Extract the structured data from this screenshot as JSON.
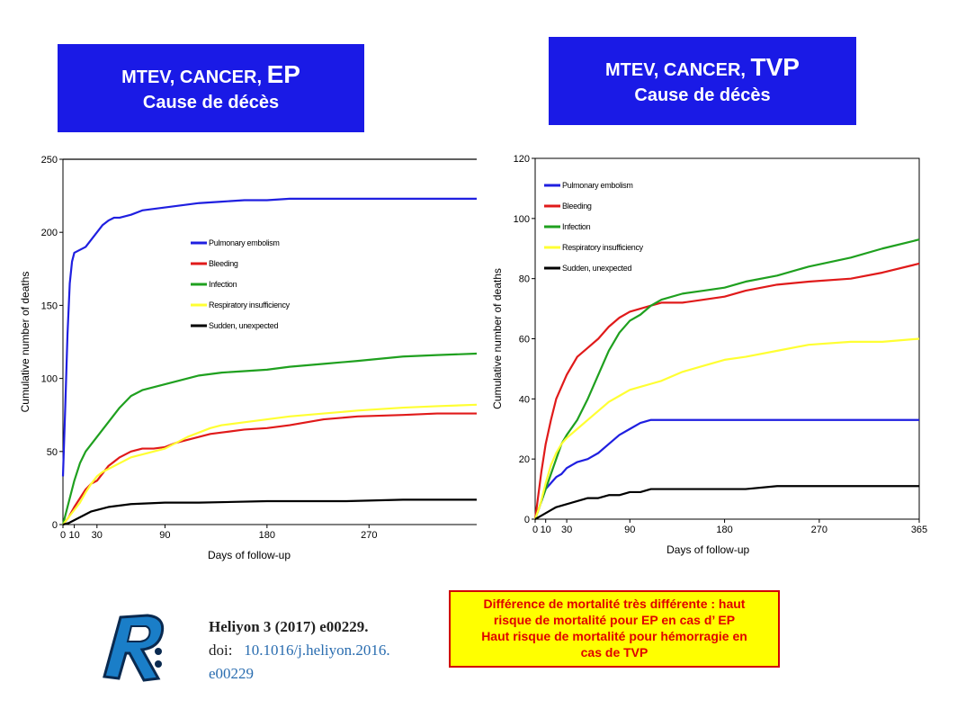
{
  "left_title": {
    "line1_prefix": "MTEV, CANCER,",
    "line1_emph": "EP",
    "line2": "Cause de décès"
  },
  "right_title": {
    "line1_prefix": "MTEV, CANCER,",
    "line1_emph": "TVP",
    "line2": "Cause de décès"
  },
  "colors": {
    "title_bg": "#1a1ae6",
    "pe": "#1f1fe0",
    "bleeding": "#e01a1a",
    "infection": "#1fa01f",
    "respiratory": "#ffff33",
    "sudden": "#000000",
    "note_bg": "#ffff00",
    "note_text": "#e00000"
  },
  "chart_data": [
    {
      "type": "line",
      "title": "MTEV, CANCER, EP — Cause de décès",
      "xlabel": "Days of follow-up",
      "ylabel": "Cumulative number of deaths",
      "xlim": [
        0,
        365
      ],
      "ylim": [
        0,
        250
      ],
      "xticks": [
        0,
        10,
        30,
        90,
        180,
        270
      ],
      "yticks": [
        0,
        50,
        100,
        150,
        200,
        250
      ],
      "series": [
        {
          "name": "Pulmonary embolism",
          "color": "#1f1fe0",
          "x": [
            0,
            2,
            4,
            6,
            8,
            10,
            15,
            20,
            25,
            30,
            35,
            40,
            45,
            50,
            60,
            70,
            80,
            90,
            100,
            110,
            120,
            140,
            160,
            180,
            200,
            230,
            260,
            300,
            330,
            365
          ],
          "y": [
            33,
            80,
            130,
            165,
            180,
            186,
            188,
            190,
            195,
            200,
            205,
            208,
            210,
            210,
            212,
            215,
            216,
            217,
            218,
            219,
            220,
            221,
            222,
            222,
            223,
            223,
            223,
            223,
            223,
            223
          ]
        },
        {
          "name": "Bleeding",
          "color": "#e01a1a",
          "x": [
            0,
            5,
            10,
            15,
            20,
            25,
            30,
            35,
            40,
            50,
            60,
            70,
            80,
            90,
            100,
            110,
            120,
            130,
            140,
            160,
            180,
            200,
            230,
            260,
            300,
            330,
            365
          ],
          "y": [
            0,
            5,
            12,
            18,
            24,
            28,
            30,
            35,
            40,
            46,
            50,
            52,
            52,
            53,
            56,
            58,
            60,
            62,
            63,
            65,
            66,
            68,
            72,
            74,
            75,
            76,
            76
          ]
        },
        {
          "name": "Infection",
          "color": "#1fa01f",
          "x": [
            0,
            5,
            10,
            15,
            20,
            25,
            30,
            35,
            40,
            45,
            50,
            60,
            70,
            80,
            90,
            100,
            110,
            120,
            130,
            140,
            160,
            180,
            200,
            230,
            260,
            300,
            330,
            365
          ],
          "y": [
            0,
            15,
            30,
            42,
            50,
            55,
            60,
            65,
            70,
            75,
            80,
            88,
            92,
            94,
            96,
            98,
            100,
            102,
            103,
            104,
            105,
            106,
            108,
            110,
            112,
            115,
            116,
            117
          ]
        },
        {
          "name": "Respiratory insufficiency",
          "color": "#ffff33",
          "x": [
            0,
            5,
            10,
            15,
            20,
            25,
            30,
            35,
            40,
            50,
            60,
            70,
            80,
            90,
            100,
            110,
            120,
            130,
            140,
            160,
            180,
            200,
            230,
            260,
            300,
            330,
            365
          ],
          "y": [
            0,
            5,
            10,
            15,
            22,
            28,
            33,
            36,
            38,
            42,
            46,
            48,
            50,
            52,
            56,
            60,
            63,
            66,
            68,
            70,
            72,
            74,
            76,
            78,
            80,
            81,
            82
          ]
        },
        {
          "name": "Sudden, unexpected",
          "color": "#000000",
          "x": [
            0,
            5,
            10,
            15,
            20,
            25,
            30,
            40,
            50,
            60,
            90,
            120,
            180,
            200,
            250,
            300,
            365
          ],
          "y": [
            0,
            1,
            3,
            5,
            7,
            9,
            10,
            12,
            13,
            14,
            15,
            15,
            16,
            16,
            16,
            17,
            17
          ]
        }
      ]
    },
    {
      "type": "line",
      "title": "MTEV, CANCER, TVP — Cause de décès",
      "xlabel": "Days of follow-up",
      "ylabel": "Cumulative number of deaths",
      "xlim": [
        0,
        365
      ],
      "ylim": [
        0,
        120
      ],
      "xticks": [
        0,
        10,
        30,
        90,
        180,
        270,
        365
      ],
      "yticks": [
        0,
        20,
        40,
        60,
        80,
        100,
        120
      ],
      "series": [
        {
          "name": "Pulmonary embolism",
          "color": "#1f1fe0",
          "x": [
            0,
            5,
            10,
            15,
            20,
            25,
            30,
            40,
            50,
            60,
            70,
            80,
            90,
            100,
            110,
            120,
            180,
            270,
            365
          ],
          "y": [
            0,
            5,
            10,
            12,
            14,
            15,
            17,
            19,
            20,
            22,
            25,
            28,
            30,
            32,
            33,
            33,
            33,
            33,
            33
          ]
        },
        {
          "name": "Bleeding",
          "color": "#e01a1a",
          "x": [
            0,
            3,
            6,
            10,
            15,
            20,
            25,
            30,
            40,
            50,
            60,
            70,
            80,
            90,
            100,
            110,
            120,
            140,
            160,
            180,
            200,
            230,
            260,
            300,
            330,
            365
          ],
          "y": [
            0,
            8,
            16,
            25,
            33,
            40,
            44,
            48,
            54,
            57,
            60,
            64,
            67,
            69,
            70,
            71,
            72,
            72,
            73,
            74,
            76,
            78,
            79,
            80,
            82,
            85
          ]
        },
        {
          "name": "Infection",
          "color": "#1fa01f",
          "x": [
            0,
            5,
            10,
            15,
            20,
            25,
            30,
            40,
            50,
            60,
            70,
            80,
            90,
            100,
            110,
            120,
            140,
            160,
            180,
            200,
            230,
            260,
            300,
            330,
            365
          ],
          "y": [
            0,
            5,
            10,
            15,
            20,
            25,
            28,
            33,
            40,
            48,
            56,
            62,
            66,
            68,
            71,
            73,
            75,
            76,
            77,
            79,
            81,
            84,
            87,
            90,
            93
          ]
        },
        {
          "name": "Respiratory insufficiency",
          "color": "#ffff33",
          "x": [
            0,
            5,
            10,
            15,
            20,
            25,
            30,
            40,
            50,
            60,
            70,
            80,
            90,
            100,
            110,
            120,
            140,
            160,
            180,
            200,
            230,
            260,
            300,
            330,
            365
          ],
          "y": [
            0,
            5,
            12,
            18,
            22,
            25,
            27,
            30,
            33,
            36,
            39,
            41,
            43,
            44,
            45,
            46,
            49,
            51,
            53,
            54,
            56,
            58,
            59,
            59,
            60
          ]
        },
        {
          "name": "Sudden, unexpected",
          "color": "#000000",
          "x": [
            0,
            5,
            10,
            15,
            20,
            30,
            40,
            50,
            60,
            70,
            80,
            90,
            100,
            110,
            180,
            200,
            230,
            270,
            365
          ],
          "y": [
            0,
            1,
            2,
            3,
            4,
            5,
            6,
            7,
            7,
            8,
            8,
            9,
            9,
            10,
            10,
            10,
            11,
            11,
            11
          ]
        }
      ]
    }
  ],
  "citation": {
    "journal": "Heliyon 3 (2017) e00229.",
    "doi_label": "doi:",
    "doi_part1": "10.1016/j.heliyon.2016.",
    "doi_part2": "e00229"
  },
  "note": {
    "line1": "Différence de mortalité très différente : haut",
    "line2": "risque de mortalité pour EP en cas d’ EP",
    "line3": "Haut risque de mortalité pour hémorragie en",
    "line4": "cas de TVP"
  },
  "logo": {
    "letter": "R"
  }
}
